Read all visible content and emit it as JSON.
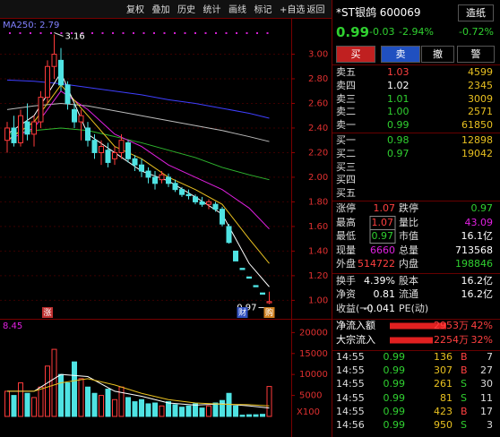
{
  "toolbar": [
    "复权",
    "叠加",
    "历史",
    "统计",
    "画线",
    "标记",
    "+自选",
    "返回"
  ],
  "ma_label": "MA250: 2.79",
  "chart_data": [
    {
      "type": "candlestick",
      "open": [
        2.3,
        2.4,
        2.28,
        2.45,
        2.35,
        2.45,
        2.65,
        2.9,
        2.95,
        2.75,
        2.55,
        2.45,
        2.4,
        2.3,
        2.2,
        2.22,
        2.15,
        2.2,
        2.28,
        2.15,
        2.1,
        2.05,
        2.0,
        1.98,
        2.0,
        1.95,
        1.9,
        1.86,
        1.84,
        1.8,
        1.78,
        1.78,
        1.74,
        1.6,
        1.4,
        1.26,
        1.19,
        1.12,
        1.06,
        0.98
      ],
      "high": [
        2.45,
        2.5,
        2.55,
        2.6,
        2.5,
        2.7,
        2.95,
        3.16,
        3.05,
        2.78,
        2.6,
        2.55,
        2.45,
        2.35,
        2.3,
        2.28,
        2.25,
        2.35,
        2.3,
        2.18,
        2.15,
        2.08,
        2.05,
        2.05,
        2.03,
        1.98,
        1.92,
        1.9,
        1.86,
        1.84,
        1.82,
        1.8,
        1.76,
        1.62,
        1.4,
        1.26,
        1.19,
        1.12,
        1.06,
        1.07
      ],
      "low": [
        2.2,
        2.25,
        2.25,
        2.3,
        2.25,
        2.4,
        2.6,
        2.8,
        2.7,
        2.55,
        2.4,
        2.3,
        2.25,
        2.15,
        2.1,
        2.08,
        2.1,
        2.15,
        2.12,
        2.05,
        2.0,
        1.95,
        1.9,
        1.95,
        1.92,
        1.88,
        1.84,
        1.82,
        1.78,
        1.76,
        1.74,
        1.72,
        1.6,
        1.46,
        1.32,
        1.25,
        1.18,
        1.11,
        1.05,
        0.97
      ],
      "close": [
        2.4,
        2.28,
        2.5,
        2.35,
        2.45,
        2.65,
        2.9,
        3.0,
        2.75,
        2.6,
        2.45,
        2.5,
        2.3,
        2.2,
        2.25,
        2.12,
        2.2,
        2.3,
        2.15,
        2.1,
        2.05,
        2.0,
        1.95,
        2.02,
        1.95,
        1.9,
        1.86,
        1.85,
        1.8,
        1.78,
        1.8,
        1.74,
        1.62,
        1.47,
        1.32,
        1.25,
        1.18,
        1.11,
        1.05,
        0.99
      ],
      "ylim": [
        0.93,
        3.28
      ],
      "yticks": [
        {
          "value": 3,
          "label": "3.00"
        },
        {
          "value": 2.8,
          "label": "2.80"
        },
        {
          "value": 2.6,
          "label": "2.60"
        },
        {
          "value": 2.4,
          "label": "2.40"
        },
        {
          "value": 2.2,
          "label": "2.20"
        },
        {
          "value": 2,
          "label": "2.00"
        },
        {
          "value": 1.8,
          "label": "1.80"
        },
        {
          "value": 1.6,
          "label": "1.60"
        },
        {
          "value": 1.4,
          "label": "1.40"
        },
        {
          "value": 1.2,
          "label": "1.20"
        },
        {
          "value": 1,
          "label": "1.00"
        }
      ],
      "up_color": "#ff3b3b",
      "down_color": "#4fe3e3",
      "ma_x": [
        0,
        4,
        8,
        12,
        16,
        20,
        24,
        28,
        32,
        36,
        39
      ],
      "series": [
        {
          "color": "#3f3fff",
          "values": [
            2.79,
            2.78,
            2.76,
            2.73,
            2.7,
            2.67,
            2.63,
            2.6,
            2.56,
            2.52,
            2.48
          ]
        },
        {
          "color": "#bbbbbb",
          "values": [
            2.55,
            2.58,
            2.6,
            2.58,
            2.54,
            2.5,
            2.46,
            2.42,
            2.38,
            2.33,
            2.29
          ]
        },
        {
          "color": "#2fb82f",
          "values": [
            2.35,
            2.38,
            2.4,
            2.38,
            2.33,
            2.28,
            2.22,
            2.16,
            2.08,
            2.02,
            1.98
          ]
        },
        {
          "color": "#e020e0",
          "values": [
            2.3,
            2.4,
            2.7,
            2.55,
            2.35,
            2.25,
            2.1,
            2.0,
            1.9,
            1.75,
            1.58
          ]
        },
        {
          "color": "#e8c020",
          "values": [
            2.3,
            2.45,
            2.75,
            2.5,
            2.25,
            2.15,
            2.0,
            1.9,
            1.78,
            1.5,
            1.3
          ]
        },
        {
          "color": "#ffffff",
          "values": [
            2.35,
            2.5,
            2.85,
            2.35,
            2.2,
            2.05,
            1.97,
            1.84,
            1.7,
            1.3,
            1.11
          ]
        }
      ],
      "annotations": [
        {
          "text": "3.16",
          "index": 7
        },
        {
          "text": "0.97",
          "index": 39
        }
      ],
      "markers": [
        {
          "text": "涨",
          "index": 6,
          "color": "#c03030"
        },
        {
          "text": "财",
          "index": 35,
          "color": "#3050c0"
        },
        {
          "text": "购",
          "index": 39,
          "color": "#d08020"
        }
      ]
    },
    {
      "type": "volume",
      "values": [
        6000,
        5000,
        8000,
        5500,
        4500,
        7000,
        12000,
        16000,
        10000,
        8000,
        13000,
        9000,
        7000,
        5500,
        5000,
        6500,
        4000,
        7000,
        4500,
        3500,
        4000,
        3000,
        3200,
        2500,
        3500,
        2800,
        2200,
        2500,
        3000,
        2000,
        2500,
        3200,
        3800,
        5500,
        2500,
        300,
        400,
        400,
        500,
        7136
      ],
      "ylim": [
        0,
        22000
      ],
      "yticks": [
        20000,
        15000,
        10000,
        5000
      ],
      "unit": "X100",
      "top_label": "8.45",
      "series": [
        {
          "color": "#ffffff",
          "values": [
            6000,
            6000,
            10000,
            9500,
            6000,
            4800,
            3200,
            2700,
            3000,
            2500,
            2000
          ]
        },
        {
          "color": "#e8c020",
          "values": [
            6000,
            6000,
            8000,
            9000,
            7500,
            5500,
            4000,
            3200,
            2900,
            2800,
            2500
          ]
        }
      ]
    }
  ],
  "quote": {
    "name": "*ST银鸽 600069",
    "sector": "造纸",
    "price": "0.99",
    "change": "-0.03",
    "pct": "-2.94%",
    "sector_pct": "-0.72%"
  },
  "buttons": [
    "买",
    "卖",
    "撤",
    "警"
  ],
  "order_book": [
    {
      "label": "卖五",
      "price": "1.03",
      "volume": "4599",
      "color": "#ff4040"
    },
    {
      "label": "卖四",
      "price": "1.02",
      "volume": "2345",
      "color": "#ffffff"
    },
    {
      "label": "卖三",
      "price": "1.01",
      "volume": "3009",
      "color": "#30d030"
    },
    {
      "label": "卖二",
      "price": "1.00",
      "volume": "2571",
      "color": "#30d030"
    },
    {
      "label": "卖一",
      "price": "0.99",
      "volume": "61850",
      "color": "#30d030"
    },
    {
      "label": "买一",
      "price": "0.98",
      "volume": "12898",
      "color": "#30d030"
    },
    {
      "label": "买二",
      "price": "0.97",
      "volume": "19042",
      "color": "#30d030"
    },
    {
      "label": "买三"
    },
    {
      "label": "买四"
    },
    {
      "label": "买五"
    }
  ],
  "stats": [
    [
      {
        "label": "涨停",
        "value": "1.07",
        "color": "#ff4040"
      },
      {
        "label": "跌停",
        "value": "0.97",
        "color": "#30d030"
      }
    ],
    [
      {
        "label": "最高",
        "value": "1.07",
        "color": "#ff4040",
        "boxed": true
      },
      {
        "label": "量比",
        "value": "43.09",
        "color": "#e020e0"
      }
    ],
    [
      {
        "label": "最低",
        "value": "0.97",
        "color": "#30d030",
        "boxed": true
      },
      {
        "label": "市值",
        "value": "16.1亿",
        "color": "#ffffff"
      }
    ],
    [
      {
        "label": "现量",
        "value": "6660",
        "color": "#e020e0"
      },
      {
        "label": "总量",
        "value": "713568",
        "color": "#ffffff"
      }
    ],
    [
      {
        "label": "外盘",
        "value": "514722",
        "color": "#ff4040"
      },
      {
        "label": "内盘",
        "value": "198846",
        "color": "#30d030"
      }
    ],
    [
      {
        "label": "换手",
        "value": "4.39%",
        "color": "#ffffff"
      },
      {
        "label": "股本",
        "value": "16.2亿",
        "color": "#ffffff"
      }
    ],
    [
      {
        "label": "净资",
        "value": "0.81",
        "color": "#ffffff"
      },
      {
        "label": "流通",
        "value": "16.2亿",
        "color": "#ffffff"
      }
    ],
    [
      {
        "label": "收益(一)",
        "value": "-0.041",
        "color": "#ffffff"
      },
      {
        "label": "PE(动)"
      }
    ]
  ],
  "flows": [
    {
      "label": "净流入额",
      "amount": "2953万",
      "pct": 42,
      "pct_label": "42%"
    },
    {
      "label": "大宗流入",
      "amount": "2254万",
      "pct": 32,
      "pct_label": "32%"
    }
  ],
  "trades": [
    [
      "14:55",
      "0.99",
      "136",
      "B",
      "7"
    ],
    [
      "14:55",
      "0.99",
      "307",
      "B",
      "27"
    ],
    [
      "14:55",
      "0.99",
      "261",
      "S",
      "30"
    ],
    [
      "14:55",
      "0.99",
      "81",
      "S",
      "11"
    ],
    [
      "14:55",
      "0.99",
      "423",
      "B",
      "17"
    ],
    [
      "14:56",
      "0.99",
      "950",
      "S",
      "3"
    ]
  ]
}
